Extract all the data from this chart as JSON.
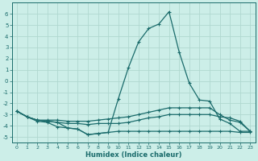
{
  "xlabel": "Humidex (Indice chaleur)",
  "ylabel": "",
  "xlim": [
    -0.5,
    23.5
  ],
  "ylim": [
    -5.5,
    7.0
  ],
  "bg_color": "#cceee8",
  "line_color": "#1a6b6b",
  "grid_color": "#b0d8d0",
  "lines": [
    {
      "x": [
        0,
        1,
        2,
        3,
        4,
        5,
        6,
        7,
        8,
        9,
        10,
        11,
        12,
        13,
        14,
        15,
        16,
        17,
        18,
        19,
        20,
        21,
        22,
        23
      ],
      "y": [
        -2.7,
        -3.2,
        -3.5,
        -3.6,
        -3.7,
        -4.2,
        -4.3,
        -4.8,
        -4.7,
        -4.6,
        -1.6,
        1.2,
        3.5,
        4.7,
        5.1,
        6.2,
        2.6,
        -0.2,
        -1.7,
        -1.8,
        -3.4,
        -3.8,
        -4.5,
        -4.5
      ]
    },
    {
      "x": [
        0,
        1,
        2,
        3,
        4,
        5,
        6,
        7,
        8,
        9,
        10,
        11,
        12,
        13,
        14,
        15,
        16,
        17,
        18,
        19,
        20,
        21,
        22,
        23
      ],
      "y": [
        -2.7,
        -3.2,
        -3.5,
        -3.5,
        -3.5,
        -3.6,
        -3.6,
        -3.6,
        -3.5,
        -3.4,
        -3.3,
        -3.2,
        -3.0,
        -2.8,
        -2.6,
        -2.4,
        -2.4,
        -2.4,
        -2.4,
        -2.4,
        -3.0,
        -3.5,
        -3.7,
        -4.5
      ]
    },
    {
      "x": [
        0,
        1,
        2,
        3,
        4,
        5,
        6,
        7,
        8,
        9,
        10,
        11,
        12,
        13,
        14,
        15,
        16,
        17,
        18,
        19,
        20,
        21,
        22,
        23
      ],
      "y": [
        -2.7,
        -3.2,
        -3.5,
        -3.6,
        -3.7,
        -3.8,
        -3.8,
        -3.9,
        -3.8,
        -3.8,
        -3.8,
        -3.7,
        -3.5,
        -3.3,
        -3.2,
        -3.0,
        -3.0,
        -3.0,
        -3.0,
        -3.0,
        -3.2,
        -3.3,
        -3.6,
        -4.5
      ]
    },
    {
      "x": [
        0,
        1,
        2,
        3,
        4,
        5,
        6,
        7,
        8,
        9,
        10,
        11,
        12,
        13,
        14,
        15,
        16,
        17,
        18,
        19,
        20,
        21,
        22,
        23
      ],
      "y": [
        -2.7,
        -3.2,
        -3.6,
        -3.7,
        -4.1,
        -4.2,
        -4.3,
        -4.8,
        -4.7,
        -4.6,
        -4.5,
        -4.5,
        -4.5,
        -4.5,
        -4.5,
        -4.5,
        -4.5,
        -4.5,
        -4.5,
        -4.5,
        -4.5,
        -4.5,
        -4.6,
        -4.6
      ]
    }
  ],
  "xticks": [
    0,
    1,
    2,
    3,
    4,
    5,
    6,
    7,
    8,
    9,
    10,
    11,
    12,
    13,
    14,
    15,
    16,
    17,
    18,
    19,
    20,
    21,
    22,
    23
  ],
  "yticks": [
    -5,
    -4,
    -3,
    -2,
    -1,
    0,
    1,
    2,
    3,
    4,
    5,
    6
  ]
}
